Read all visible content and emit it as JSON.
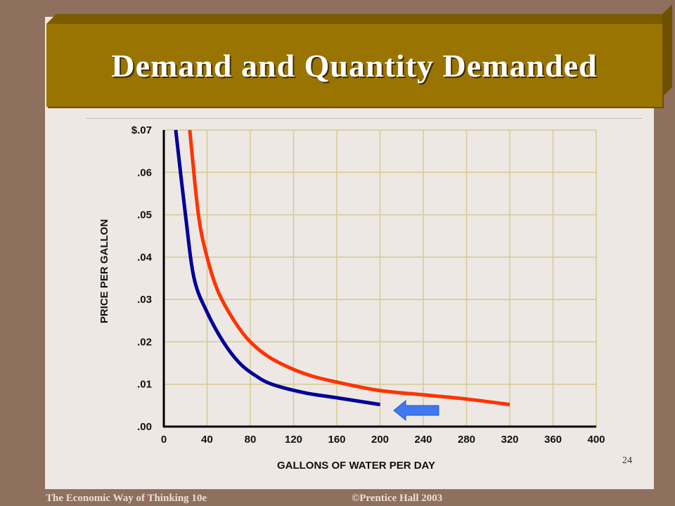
{
  "slide": {
    "title": "Demand and Quantity Demanded",
    "page_number": "24",
    "footer_left": "The Economic Way of Thinking 10e",
    "footer_right": "©Prentice Hall 2003"
  },
  "colors": {
    "background": "#8f6f5d",
    "slide": "#ede8e4",
    "banner": "#9a7400",
    "series_blue": "#000099",
    "series_red": "#ff3300",
    "arrow": "#3f78f0"
  },
  "chart_data": {
    "type": "line",
    "title": "",
    "xlabel": "GALLONS OF WATER PER DAY",
    "ylabel": "PRICE PER GALLON",
    "xlim": [
      0,
      400
    ],
    "ylim": [
      0,
      0.07
    ],
    "x_ticks": [
      "0",
      "40",
      "80",
      "120",
      "160",
      "200",
      "240",
      "280",
      "320",
      "360",
      "400"
    ],
    "y_ticks": [
      ".00",
      ".01",
      ".02",
      ".03",
      ".04",
      ".05",
      ".06",
      "$.07"
    ],
    "grid": true,
    "series": [
      {
        "color": "#000099",
        "points": [
          [
            11,
            0.07
          ],
          [
            20,
            0.05
          ],
          [
            28,
            0.035
          ],
          [
            40,
            0.027
          ],
          [
            55,
            0.02
          ],
          [
            70,
            0.015
          ],
          [
            85,
            0.012
          ],
          [
            100,
            0.01
          ],
          [
            130,
            0.008
          ],
          [
            160,
            0.0068
          ],
          [
            200,
            0.0052
          ]
        ]
      },
      {
        "color": "#ff3300",
        "points": [
          [
            24,
            0.07
          ],
          [
            32,
            0.05
          ],
          [
            40,
            0.04
          ],
          [
            50,
            0.032
          ],
          [
            65,
            0.025
          ],
          [
            80,
            0.02
          ],
          [
            100,
            0.016
          ],
          [
            130,
            0.0125
          ],
          [
            160,
            0.0105
          ],
          [
            200,
            0.0085
          ],
          [
            240,
            0.0075
          ],
          [
            280,
            0.0065
          ],
          [
            320,
            0.0052
          ]
        ]
      }
    ],
    "annotations": [
      {
        "type": "arrow",
        "direction": "left",
        "color": "#3f78f0"
      }
    ]
  }
}
